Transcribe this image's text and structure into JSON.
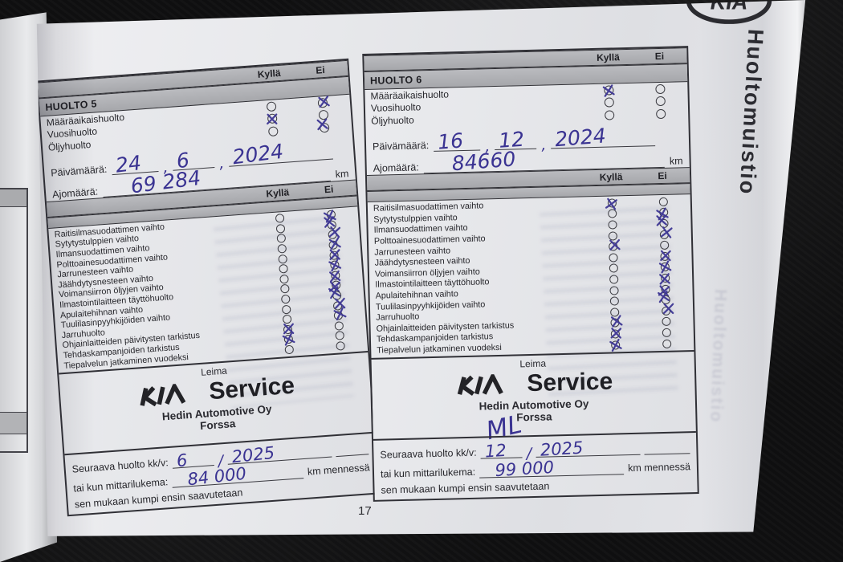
{
  "page": {
    "number": "17",
    "sidebar_title": "Huoltomuistio",
    "brand_badge": "KIA"
  },
  "labels": {
    "yes": "Kyllä",
    "no": "Ei",
    "date": "Päivämäärä:",
    "odometer": "Ajomäärä:",
    "km": "km",
    "date_sep": ",",
    "next_sep": "/",
    "stamp": "Leima",
    "service": "Service",
    "next_service": "Seuraava huolto kk/v:",
    "or_odometer": "tai kun mittarilukema:",
    "km_by": "km mennessä",
    "whichever_first": "sen mukaan kumpi ensin saavutetaan"
  },
  "top_labels": [
    "Määräaikaishuolto",
    "Vuosihuolto",
    "Öljyhuolto"
  ],
  "checklist_labels": [
    "Raitisilmasuodattimen vaihto",
    "Sytytystulppien vaihto",
    "Ilmansuodattimen vaihto",
    "Polttoainesuodattimen vaihto",
    "Jarrunesteen vaihto",
    "Jäähdytysnesteen vaihto",
    "Voimansiirron öljyjen vaihto",
    "Ilmastointilaitteen täyttöhuolto",
    "Apulaitehihnan vaihto",
    "Tuulilasinpyyhkijöiden vaihto",
    "Jarruhuolto",
    "Ohjainlaitteiden päivitysten tarkistus",
    "Tehdaskampanjoiden tarkistus",
    "Tiepalvelun jatkaminen vuodeksi"
  ],
  "records": [
    {
      "title": "HUOLTO 5",
      "top_marks": [
        {
          "k": false,
          "e": true
        },
        {
          "k": true,
          "e": false
        },
        {
          "k": false,
          "e": true
        }
      ],
      "date": {
        "day": "24",
        "month": "6",
        "year": "2024"
      },
      "odometer": "69 284",
      "list_marks": [
        {
          "k": false,
          "e": true
        },
        {
          "k": false,
          "e": true
        },
        {
          "k": false,
          "e": true
        },
        {
          "k": false,
          "e": true
        },
        {
          "k": false,
          "e": true
        },
        {
          "k": false,
          "e": true
        },
        {
          "k": false,
          "e": true
        },
        {
          "k": false,
          "e": true
        },
        {
          "k": false,
          "e": true
        },
        {
          "k": false,
          "e": true
        },
        {
          "k": false,
          "e": true
        },
        {
          "k": true,
          "e": false
        },
        {
          "k": true,
          "e": false
        },
        {
          "k": false,
          "e": false
        }
      ],
      "dealer": "Hedin Automotive Oy",
      "city": "Forssa",
      "initials": "",
      "next": {
        "month": "6",
        "year": "2025",
        "odometer": "84 000"
      }
    },
    {
      "title": "HUOLTO 6",
      "top_marks": [
        {
          "k": true,
          "e": false
        },
        {
          "k": false,
          "e": false
        },
        {
          "k": false,
          "e": false
        }
      ],
      "date": {
        "day": "16",
        "month": "12",
        "year": "2024"
      },
      "odometer": "84660",
      "list_marks": [
        {
          "k": true,
          "e": false
        },
        {
          "k": false,
          "e": true
        },
        {
          "k": false,
          "e": true
        },
        {
          "k": false,
          "e": true
        },
        {
          "k": true,
          "e": false
        },
        {
          "k": false,
          "e": true
        },
        {
          "k": false,
          "e": true
        },
        {
          "k": false,
          "e": true
        },
        {
          "k": false,
          "e": true
        },
        {
          "k": false,
          "e": true
        },
        {
          "k": false,
          "e": true
        },
        {
          "k": true,
          "e": false
        },
        {
          "k": true,
          "e": false
        },
        {
          "k": true,
          "e": false
        }
      ],
      "dealer": "Hedin Automotive Oy",
      "city": "Forssa",
      "initials": "ML",
      "next": {
        "month": "12",
        "year": "2025",
        "odometer": "99 000"
      }
    }
  ]
}
